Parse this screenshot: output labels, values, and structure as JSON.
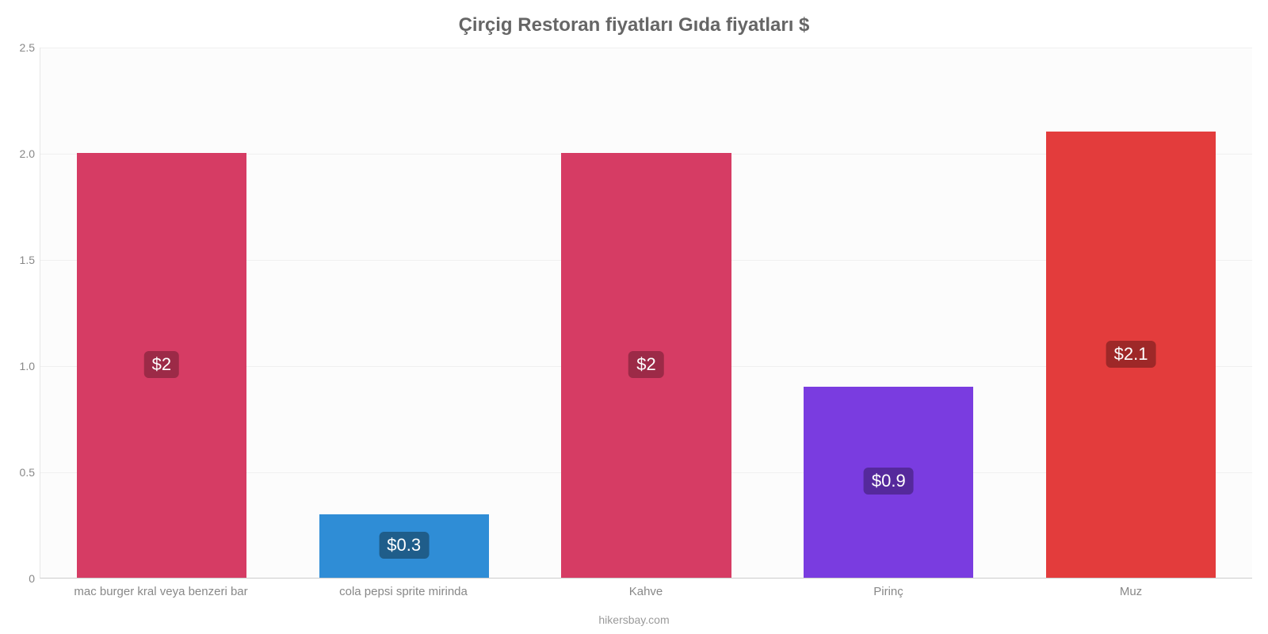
{
  "chart": {
    "type": "bar",
    "title": "Çirçig Restoran fiyatları Gıda fiyatları $",
    "title_color": "#666666",
    "title_fontsize": 24,
    "footer": "hikersbay.com",
    "footer_color": "#9a9a9a",
    "background_color": "#ffffff",
    "plot_background_color": "#fcfcfc",
    "grid_color": "#f0f0f0",
    "axis_color": "#cccccc",
    "ylim": [
      0,
      2.5
    ],
    "ytick_step": 0.5,
    "yticks": [
      "0",
      "0.5",
      "1.0",
      "1.5",
      "2.0",
      "2.5"
    ],
    "ytick_color": "#888888",
    "ytick_fontsize": 14,
    "xlabel_color": "#888888",
    "xlabel_fontsize": 15,
    "bar_width_pct": 70,
    "value_label_fontsize": 22,
    "value_label_text_color": "#ffffff",
    "categories": [
      "mac burger kral veya benzeri bar",
      "cola pepsi sprite mirinda",
      "Kahve",
      "Pirinç",
      "Muz"
    ],
    "values": [
      2.0,
      0.3,
      2.0,
      0.9,
      2.1
    ],
    "value_labels": [
      "$2",
      "$0.3",
      "$2",
      "$0.9",
      "$2.1"
    ],
    "bar_colors": [
      "#d63c64",
      "#2f8dd6",
      "#d63c64",
      "#7a3ce0",
      "#e33c3c"
    ],
    "badge_colors": [
      "#9c2a47",
      "#1f5d8a",
      "#9c2a47",
      "#55299c",
      "#9e2828"
    ],
    "badge_extra": {
      "1": {
        "bg": "#7a7a7a"
      }
    }
  }
}
